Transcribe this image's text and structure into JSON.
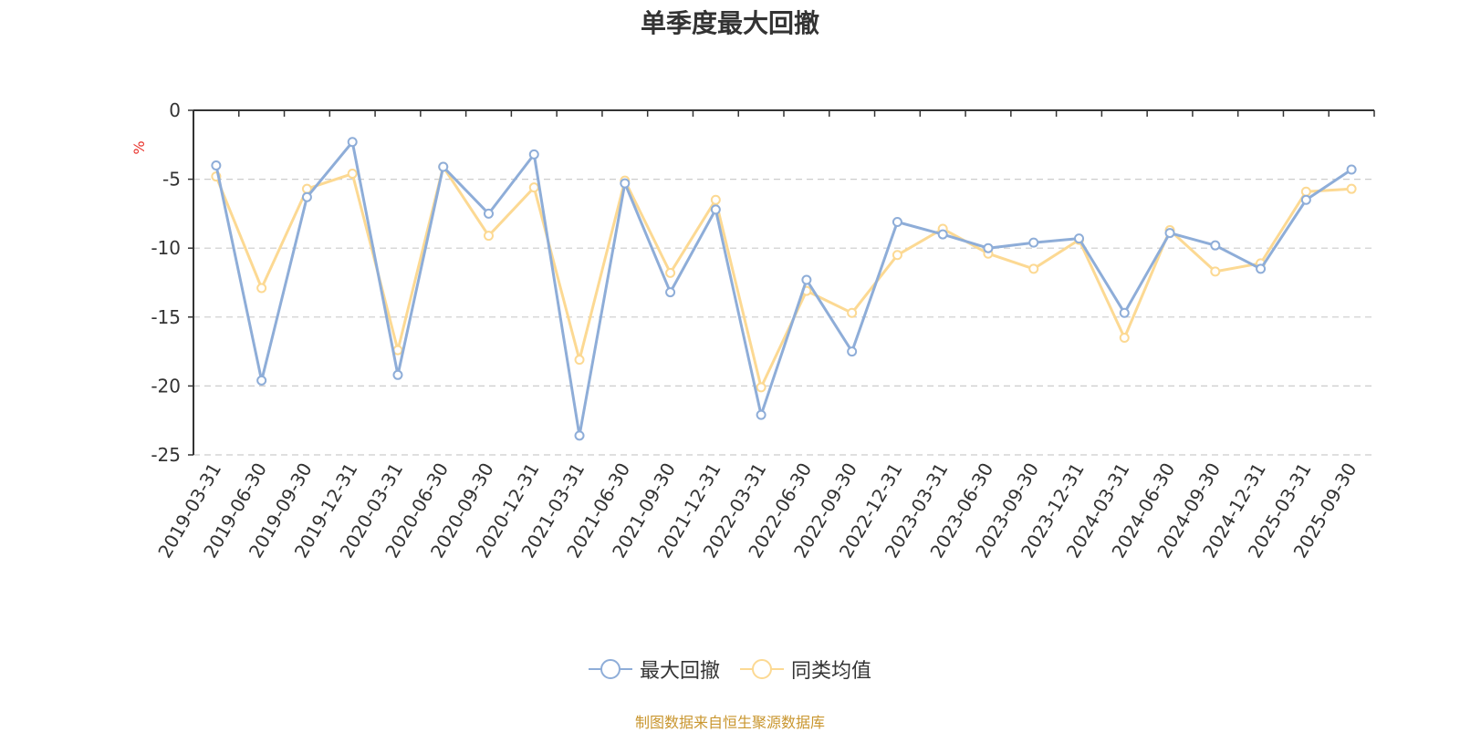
{
  "colors": {
    "series1": "#8eadd8",
    "series2": "#fcd993",
    "axis": "#333333",
    "grid": "#cccccc",
    "unit": "#e8322b",
    "source": "#c9962f"
  },
  "source_note": "制图数据来自恒生聚源数据库",
  "chart_data": {
    "type": "line",
    "title": "单季度最大回撤",
    "ylabel": "%",
    "ylim": [
      -25,
      0
    ],
    "yticks": [
      0,
      -5,
      -10,
      -15,
      -20,
      -25
    ],
    "grid": "horizontal-dashed",
    "legend_position": "bottom-center",
    "categories": [
      "2019-03-31",
      "2019-06-30",
      "2019-09-30",
      "2019-12-31",
      "2020-03-31",
      "2020-06-30",
      "2020-09-30",
      "2020-12-31",
      "2021-03-31",
      "2021-06-30",
      "2021-09-30",
      "2021-12-31",
      "2022-03-31",
      "2022-06-30",
      "2022-09-30",
      "2022-12-31",
      "2023-03-31",
      "2023-06-30",
      "2023-09-30",
      "2023-12-31",
      "2024-03-31",
      "2024-06-30",
      "2024-09-30",
      "2024-12-31",
      "2025-03-31",
      "2025-09-30"
    ],
    "series": [
      {
        "name": "最大回撤",
        "values": [
          -4.0,
          -19.6,
          -6.3,
          -2.3,
          -19.2,
          -4.1,
          -7.5,
          -3.2,
          -23.6,
          -5.3,
          -13.2,
          -7.2,
          -22.1,
          -12.3,
          -17.5,
          -8.1,
          -9.0,
          -10.0,
          -9.6,
          -9.3,
          -14.7,
          -8.9,
          -9.8,
          -11.5,
          -6.5,
          -4.3
        ]
      },
      {
        "name": "同类均值",
        "values": [
          -4.8,
          -12.9,
          -5.7,
          -4.6,
          -17.4,
          -4.1,
          -9.1,
          -5.6,
          -18.1,
          -5.1,
          -11.8,
          -6.5,
          -20.1,
          -13.1,
          -14.7,
          -10.5,
          -8.6,
          -10.4,
          -11.5,
          -9.4,
          -16.5,
          -8.7,
          -11.7,
          -11.1,
          -5.9,
          -5.7
        ]
      }
    ]
  }
}
